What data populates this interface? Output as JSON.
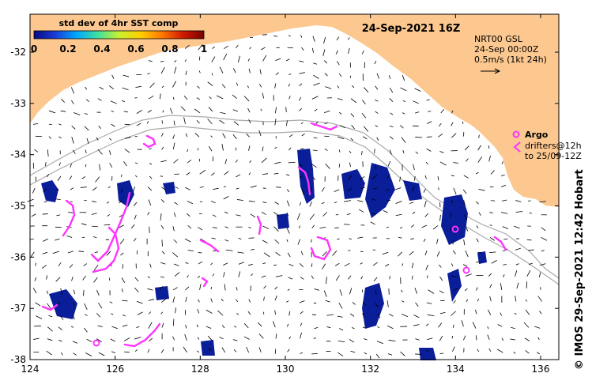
{
  "title": "24-Sep-2021 16Z",
  "colorbar": {
    "title": "std dev of 4hr SST comp",
    "ticks": [
      "0",
      "0.2",
      "0.4",
      "0.6",
      "0.8",
      "1"
    ],
    "colors": [
      "#0a0a82",
      "#1a3cd6",
      "#00a8ff",
      "#3fe0a0",
      "#c8f030",
      "#ffd000",
      "#ff7a00",
      "#d01a00",
      "#7a0000"
    ]
  },
  "current_info": {
    "line1": "NRT00 GSL",
    "line2": "24-Sep 00:00Z",
    "line3": "0.5m/s (1kt 24h)"
  },
  "argo": {
    "label": "Argo",
    "line1": "drifters@12h",
    "line2": "to 25/09-12Z"
  },
  "credit": "© IMOS 29-Sep-2021 12:42 Hobart",
  "axes": {
    "x_ticks": [
      "124",
      "126",
      "128",
      "130",
      "132",
      "134",
      "136"
    ],
    "y_ticks": [
      "-32",
      "-33",
      "-34",
      "-35",
      "-36",
      "-37",
      "-38"
    ]
  },
  "colors": {
    "land": "#fcc890",
    "drifter": "#ff33ff",
    "bathymetry": "#aaaaaa",
    "sst_patch": "#0a1e9a"
  }
}
